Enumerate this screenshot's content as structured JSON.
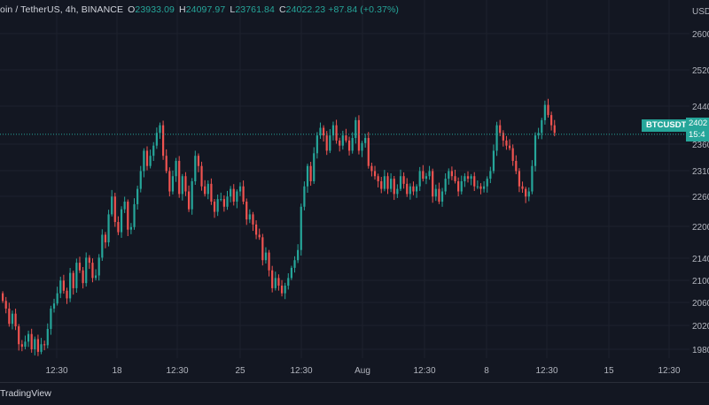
{
  "legend": {
    "title": "oin / TetherUS, 4h, BINANCE",
    "open_label": "O",
    "open": "23933.09",
    "high_label": "H",
    "high": "24097.97",
    "low_label": "L",
    "low": "23761.84",
    "close_label": "C",
    "close": "24022.23",
    "change": "+87.84 (+0.37%)"
  },
  "price_axis": {
    "currency": "USD",
    "labels": [
      "2600",
      "2520",
      "2440",
      "2360",
      "2310",
      "2260",
      "2200",
      "2140",
      "2100",
      "2060",
      "2020",
      "1980"
    ]
  },
  "time_axis": {
    "labels": [
      "12:30",
      "18",
      "12:30",
      "25",
      "12:30",
      "Aug",
      "12:30",
      "8",
      "12:30",
      "15",
      "12:30"
    ]
  },
  "symbol_tag": "BTCUSDT",
  "last_price": {
    "price": "2402",
    "countdown": "15:4"
  },
  "footer": {
    "brand": "TradingView"
  },
  "colors": {
    "background": "#131722",
    "up": "#26a69a",
    "down": "#ef5350",
    "grid": "#1e222d",
    "axis_text": "#b2b5be"
  },
  "chart_data": {
    "type": "candlestick",
    "symbol": "BTCUSDT",
    "interval": "4h",
    "ylim": [
      19700,
      26200
    ],
    "grid": true,
    "last_price": 24022.23,
    "candles_close": [
      20750,
      20600,
      20300,
      20500,
      20250,
      19900,
      19850,
      19950,
      20100,
      19800,
      20000,
      19750,
      19900,
      19880,
      20200,
      20600,
      20700,
      20900,
      21150,
      20950,
      20800,
      21300,
      21000,
      21500,
      21350,
      21100,
      21600,
      21500,
      21200,
      21250,
      21600,
      22050,
      21900,
      22450,
      22800,
      22300,
      22100,
      22550,
      22700,
      22150,
      22200,
      22650,
      22950,
      23300,
      23700,
      23400,
      23600,
      23800,
      24050,
      24200,
      23600,
      23300,
      22900,
      23200,
      23500,
      22850,
      23200,
      22900,
      22550,
      23100,
      23600,
      23400,
      23000,
      22850,
      23050,
      22700,
      22500,
      22750,
      22750,
      22600,
      22800,
      22950,
      22700,
      22900,
      23000,
      22700,
      22350,
      22450,
      22250,
      22050,
      22000,
      21550,
      21700,
      21350,
      21000,
      21200,
      21050,
      20900,
      21050,
      21200,
      21400,
      21550,
      21750,
      22600,
      23000,
      23400,
      23100,
      23650,
      24000,
      24150,
      24000,
      23700,
      24000,
      24200,
      23900,
      23800,
      24000,
      23900,
      23700,
      23950,
      24300,
      23700,
      23850,
      23950,
      23400,
      23300,
      23200,
      23100,
      22950,
      23200,
      22950,
      23150,
      22850,
      22950,
      23200,
      23050,
      22850,
      23000,
      22900,
      23000,
      23300,
      23150,
      23200,
      23300,
      22800,
      22950,
      22700,
      22900,
      23150,
      23300,
      23200,
      23100,
      22900,
      23100,
      23200,
      23150,
      23200,
      23000,
      23000,
      22950,
      23000,
      23150,
      23300,
      23700,
      24200,
      24050,
      23900,
      23800,
      23750,
      23500,
      23300,
      23000,
      22950,
      22800,
      22900,
      23400,
      24000,
      24050,
      24300,
      24600,
      24400,
      24200,
      24050
    ]
  }
}
